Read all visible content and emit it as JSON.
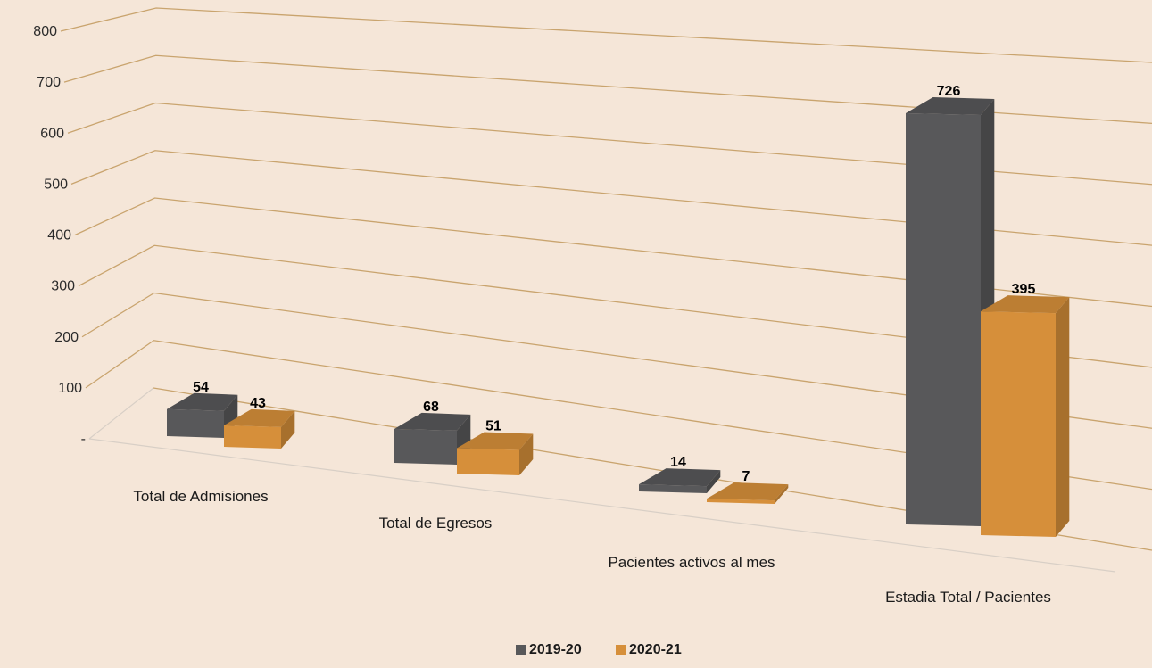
{
  "chart_data": {
    "type": "bar",
    "title": "",
    "xlabel": "",
    "ylabel": "",
    "categories": [
      "Total de Admisiones",
      "Total de Egresos",
      "Pacientes activos al mes",
      "Estadia Total / Pacientes"
    ],
    "series": [
      {
        "name": "2019-20",
        "values": [
          54,
          68,
          14,
          726
        ],
        "color": "#58585a"
      },
      {
        "name": "2020-21",
        "values": [
          43,
          51,
          7,
          395
        ],
        "color": "#d68f3a"
      }
    ],
    "ylim": [
      0,
      800
    ],
    "yticks": [
      {
        "value": 0,
        "label": "-"
      },
      {
        "value": 100,
        "label": "100"
      },
      {
        "value": 200,
        "label": "200"
      },
      {
        "value": 300,
        "label": "300"
      },
      {
        "value": 400,
        "label": "400"
      },
      {
        "value": 500,
        "label": "500"
      },
      {
        "value": 600,
        "label": "600"
      },
      {
        "value": 700,
        "label": "700"
      },
      {
        "value": 800,
        "label": "800"
      }
    ],
    "grid": true,
    "legend": "bottom-center",
    "style": "3d-column",
    "background": "#f5e6d8",
    "gridline_color": "#c9a46e"
  }
}
